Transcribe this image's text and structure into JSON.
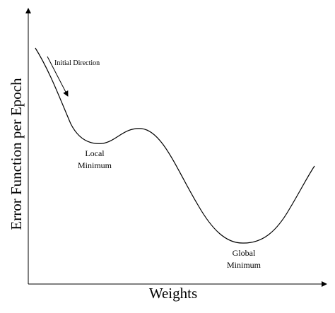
{
  "axes": {
    "y_label": "Error Function per Epoch",
    "x_label": "Weights"
  },
  "annotations": {
    "initial_direction": "Initial Direction",
    "local_minimum": [
      "Local",
      "Minimum"
    ],
    "global_minimum": [
      "Global",
      "Minimum"
    ]
  }
}
